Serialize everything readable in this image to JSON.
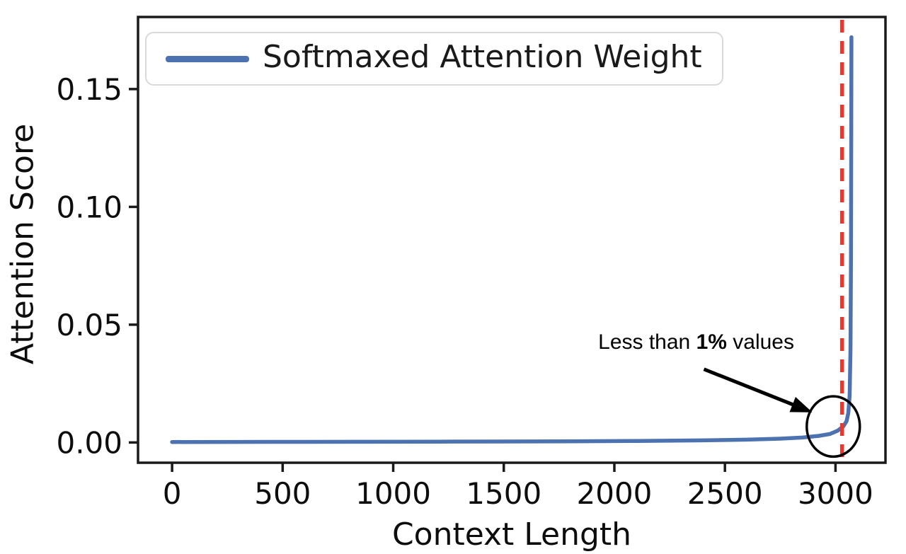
{
  "figure": {
    "background": "#ffffff",
    "axis_color": "#1a1a1a",
    "text_color": "#0d0d0d"
  },
  "legend": {
    "label": "Softmaxed Attention Weight",
    "swatch_color": "#4C72B0"
  },
  "annotation": {
    "segments": [
      {
        "text": "Less than ",
        "bold": false
      },
      {
        "text": "1%",
        "bold": true
      },
      {
        "text": " values",
        "bold": false
      }
    ]
  },
  "chart_data": {
    "type": "line",
    "title": "",
    "xlabel": "Context Length",
    "ylabel": "Attention Score",
    "xlim": [
      -154,
      3226
    ],
    "ylim": [
      -0.0086,
      0.1806
    ],
    "x_ticks": [
      0,
      500,
      1000,
      1500,
      2000,
      2500,
      3000
    ],
    "x_tick_labels": [
      "0",
      "500",
      "1000",
      "1500",
      "2000",
      "2500",
      "3000"
    ],
    "y_ticks": [
      0.0,
      0.05,
      0.1,
      0.15
    ],
    "y_tick_labels": [
      "0.00",
      "0.05",
      "0.10",
      "0.15"
    ],
    "grid": false,
    "legend_position": "upper left",
    "series": [
      {
        "name": "Softmaxed Attention Weight",
        "color": "#4C72B0",
        "line_width": 5.5,
        "x": [
          0,
          300,
          600,
          900,
          1200,
          1500,
          1800,
          2100,
          2400,
          2600,
          2750,
          2850,
          2925,
          2975,
          3010,
          3035,
          3050,
          3058,
          3064,
          3068,
          3070,
          3071,
          3072
        ],
        "y": [
          0.0002,
          0.00022,
          0.00025,
          0.0003,
          0.00035,
          0.0004,
          0.0005,
          0.00065,
          0.0009,
          0.0012,
          0.0016,
          0.0021,
          0.0028,
          0.0036,
          0.005,
          0.0068,
          0.009,
          0.0125,
          0.02,
          0.04,
          0.08,
          0.125,
          0.172
        ]
      }
    ],
    "vline": {
      "x": 3030,
      "color": "#E8372C",
      "width": 5.5,
      "dash": [
        18,
        12
      ],
      "meaning": "boundary of top 1% of values"
    },
    "annotations": {
      "label_text": "Less than 1% values",
      "label_anchor": {
        "x": 2370,
        "y": 0.0425
      },
      "arrow": {
        "x1": 2405,
        "y1": 0.0311,
        "x2": 2895,
        "y2": 0.0128,
        "color": "#000000",
        "width": 5
      },
      "circle": {
        "cx": 2990,
        "cy": 0.0068,
        "rx": 120,
        "ry": 0.0128,
        "color": "#000000",
        "width": 3.5
      }
    }
  }
}
